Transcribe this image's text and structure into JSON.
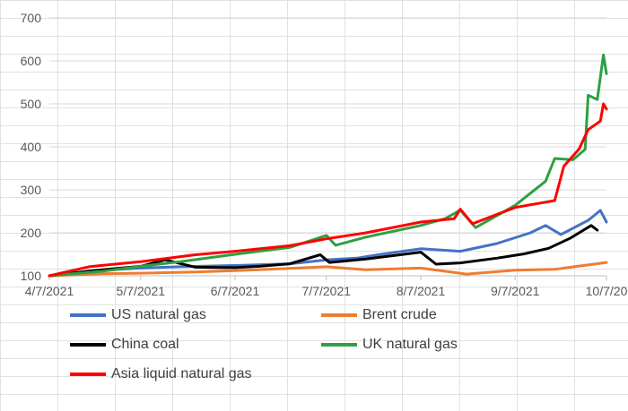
{
  "chart_data": {
    "type": "line",
    "title": "",
    "xlabel": "",
    "ylabel": "",
    "ylim": [
      100,
      700
    ],
    "yticks": [
      100,
      200,
      300,
      400,
      500,
      600,
      700
    ],
    "xlim": [
      "2021-04-07",
      "2021-10-07"
    ],
    "xtick_labels": [
      "4/7/2021",
      "5/7/2021",
      "6/7/2021",
      "7/7/2021",
      "8/7/2021",
      "9/7/2021",
      "10/7/20"
    ],
    "xtick_dates": [
      "2021-04-07",
      "2021-05-07",
      "2021-06-07",
      "2021-07-07",
      "2021-08-07",
      "2021-09-07",
      "2021-10-07"
    ],
    "grid": "horizontal",
    "legend_position": "bottom",
    "series": [
      {
        "name": "US natural gas",
        "color": "#4472c4",
        "points": [
          [
            "2021-04-07",
            100
          ],
          [
            "2021-04-15",
            104
          ],
          [
            "2021-04-25",
            113
          ],
          [
            "2021-05-07",
            118
          ],
          [
            "2021-05-20",
            121
          ],
          [
            "2021-06-07",
            124
          ],
          [
            "2021-06-25",
            128
          ],
          [
            "2021-07-07",
            137
          ],
          [
            "2021-07-17",
            141
          ],
          [
            "2021-07-25",
            150
          ],
          [
            "2021-08-07",
            163
          ],
          [
            "2021-08-20",
            157
          ],
          [
            "2021-09-01",
            175
          ],
          [
            "2021-09-12",
            200
          ],
          [
            "2021-09-17",
            217
          ],
          [
            "2021-09-22",
            196
          ],
          [
            "2021-10-01",
            229
          ],
          [
            "2021-10-05",
            252
          ],
          [
            "2021-10-07",
            225
          ]
        ]
      },
      {
        "name": "Brent crude",
        "color": "#ed7d31",
        "points": [
          [
            "2021-04-07",
            100
          ],
          [
            "2021-04-25",
            105
          ],
          [
            "2021-05-07",
            106
          ],
          [
            "2021-05-25",
            109
          ],
          [
            "2021-06-07",
            112
          ],
          [
            "2021-06-25",
            117
          ],
          [
            "2021-07-07",
            121
          ],
          [
            "2021-07-20",
            114
          ],
          [
            "2021-08-07",
            118
          ],
          [
            "2021-08-22",
            104
          ],
          [
            "2021-09-07",
            113
          ],
          [
            "2021-09-20",
            115
          ],
          [
            "2021-10-07",
            131
          ]
        ]
      },
      {
        "name": "China coal",
        "color": "#000000",
        "points": [
          [
            "2021-04-07",
            100
          ],
          [
            "2021-04-20",
            111
          ],
          [
            "2021-05-07",
            122
          ],
          [
            "2021-05-15",
            137
          ],
          [
            "2021-05-25",
            120
          ],
          [
            "2021-06-07",
            119
          ],
          [
            "2021-06-15",
            122
          ],
          [
            "2021-06-25",
            128
          ],
          [
            "2021-07-05",
            149
          ],
          [
            "2021-07-08",
            131
          ],
          [
            "2021-07-20",
            139
          ],
          [
            "2021-08-07",
            155
          ],
          [
            "2021-08-12",
            127
          ],
          [
            "2021-08-20",
            130
          ],
          [
            "2021-09-01",
            141
          ],
          [
            "2021-09-10",
            151
          ],
          [
            "2021-09-18",
            164
          ],
          [
            "2021-09-25",
            187
          ],
          [
            "2021-10-02",
            217
          ],
          [
            "2021-10-04",
            206
          ]
        ]
      },
      {
        "name": "UK natural gas",
        "color": "#2ea043",
        "points": [
          [
            "2021-04-07",
            100
          ],
          [
            "2021-04-25",
            111
          ],
          [
            "2021-05-07",
            122
          ],
          [
            "2021-05-20",
            133
          ],
          [
            "2021-06-07",
            150
          ],
          [
            "2021-06-25",
            166
          ],
          [
            "2021-07-07",
            194
          ],
          [
            "2021-07-10",
            171
          ],
          [
            "2021-07-20",
            190
          ],
          [
            "2021-08-07",
            217
          ],
          [
            "2021-08-15",
            233
          ],
          [
            "2021-08-20",
            253
          ],
          [
            "2021-08-25",
            212
          ],
          [
            "2021-09-07",
            264
          ],
          [
            "2021-09-17",
            320
          ],
          [
            "2021-09-20",
            373
          ],
          [
            "2021-09-26",
            370
          ],
          [
            "2021-09-30",
            394
          ],
          [
            "2021-10-01",
            520
          ],
          [
            "2021-10-04",
            510
          ],
          [
            "2021-10-06",
            614
          ],
          [
            "2021-10-07",
            570
          ]
        ]
      },
      {
        "name": "Asia liquid natural gas",
        "color": "#ff0000",
        "points": [
          [
            "2021-04-07",
            100
          ],
          [
            "2021-04-20",
            121
          ],
          [
            "2021-05-07",
            133
          ],
          [
            "2021-05-25",
            149
          ],
          [
            "2021-06-07",
            157
          ],
          [
            "2021-06-25",
            170
          ],
          [
            "2021-07-07",
            186
          ],
          [
            "2021-07-20",
            200
          ],
          [
            "2021-08-07",
            225
          ],
          [
            "2021-08-18",
            233
          ],
          [
            "2021-08-20",
            255
          ],
          [
            "2021-08-24",
            221
          ],
          [
            "2021-09-07",
            259
          ],
          [
            "2021-09-20",
            275
          ],
          [
            "2021-09-23",
            355
          ],
          [
            "2021-09-28",
            395
          ],
          [
            "2021-10-01",
            440
          ],
          [
            "2021-10-05",
            460
          ],
          [
            "2021-10-06",
            500
          ],
          [
            "2021-10-07",
            488
          ]
        ]
      }
    ]
  }
}
